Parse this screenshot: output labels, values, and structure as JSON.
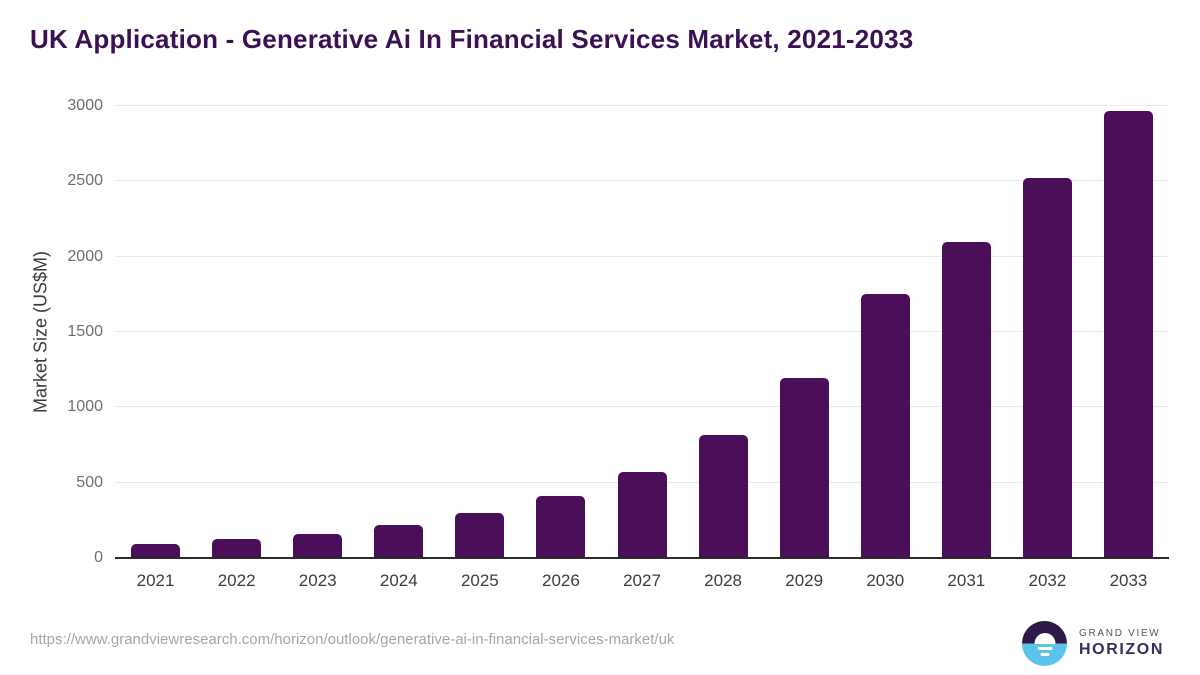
{
  "header": {
    "title": "UK Application - Generative Ai In Financial Services Market, 2021-2033"
  },
  "chart_data": {
    "type": "bar",
    "title": "UK Application - Generative Ai In Financial Services Market, 2021-2033",
    "categories": [
      "2021",
      "2022",
      "2023",
      "2024",
      "2025",
      "2026",
      "2027",
      "2028",
      "2029",
      "2030",
      "2031",
      "2032",
      "2033"
    ],
    "values": [
      90,
      125,
      160,
      220,
      300,
      410,
      570,
      815,
      1195,
      1755,
      2100,
      2520,
      2965
    ],
    "xlabel": "",
    "ylabel": "Market Size (US$M)",
    "ylim": [
      0,
      3000
    ],
    "y_ticks": [
      0,
      500,
      1000,
      1500,
      2000,
      2500,
      3000
    ],
    "grid": "horizontal-only",
    "legend": "none",
    "bar_color": "#4a0f58"
  },
  "footer": {
    "source_url": "https://www.grandviewresearch.com/horizon/outlook/generative-ai-in-financial-services-market/uk",
    "logo": {
      "icon": "horizon-sunrise-icon",
      "line1": "GRAND VIEW",
      "line2": "HORIZON"
    }
  },
  "colors": {
    "title_text": "#3b1153",
    "bar": "#4a0f58",
    "gridline": "#e9e9e9",
    "axis_line": "#2b2b2b",
    "y_tick_label": "#6e6e6e",
    "x_tick_label": "#3d3d3d",
    "url_text": "#a6a6a6",
    "logo_dark_half": "#2e1a47",
    "logo_blue_half": "#5cc3ea",
    "logo_text_gray": "#5a5260",
    "logo_text_purple": "#3b2d5a"
  }
}
